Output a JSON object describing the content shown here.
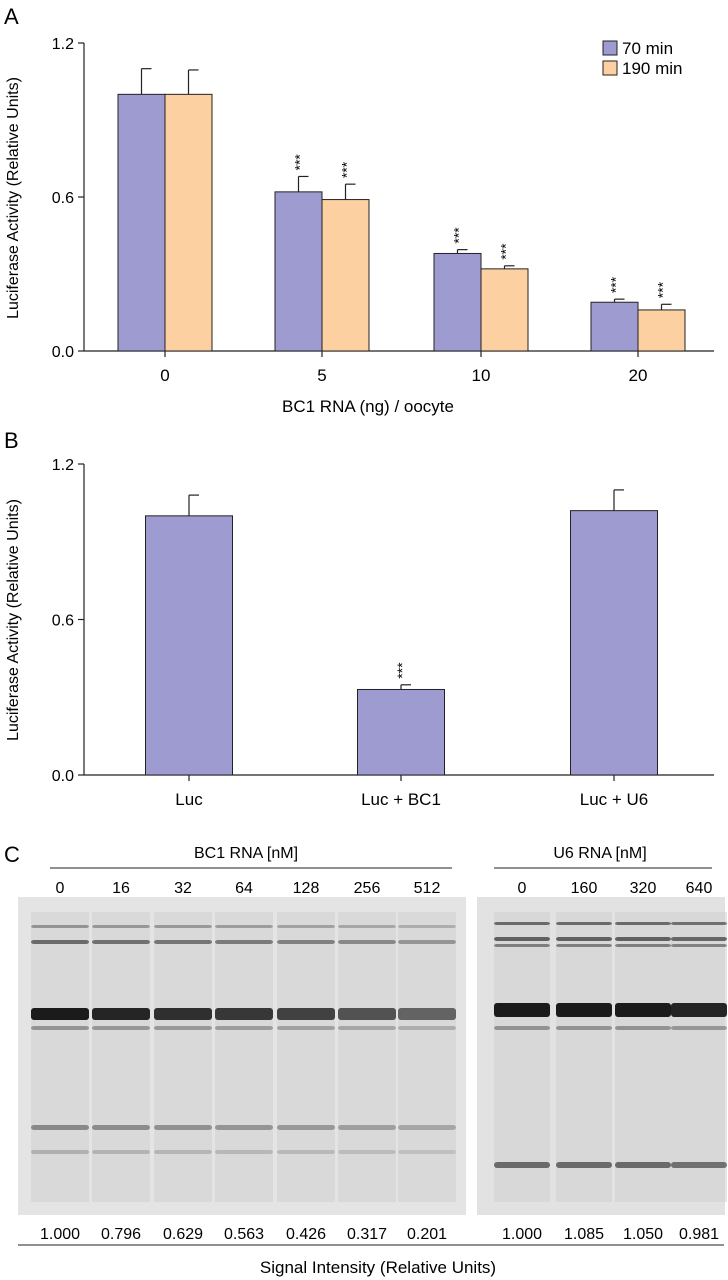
{
  "panel_labels": {
    "a": "A",
    "b": "B",
    "c": "C"
  },
  "colors": {
    "series_70": "#9e9bd0",
    "series_190": "#fcd0a0",
    "single": "#9e9bd0",
    "axis": "#222222"
  },
  "chart_data": [
    {
      "type": "bar",
      "panel": "A",
      "categories": [
        "0",
        "5",
        "10",
        "20"
      ],
      "xlabel": "BC1 RNA (ng) / oocyte",
      "ylabel": "Luciferase Activity (Relative Units)",
      "ylim": [
        0,
        1.2
      ],
      "yticks": [
        "0.0",
        "0.6",
        "1.2"
      ],
      "legend_position": "top-right",
      "series": [
        {
          "name": "70 min",
          "values": [
            1.0,
            0.62,
            0.38,
            0.19
          ],
          "errors": [
            0.1,
            0.06,
            0.015,
            0.012
          ],
          "significance": [
            "",
            "***",
            "***",
            "***"
          ]
        },
        {
          "name": "190 min",
          "values": [
            1.0,
            0.59,
            0.32,
            0.16
          ],
          "errors": [
            0.095,
            0.06,
            0.012,
            0.022
          ],
          "significance": [
            "",
            "***",
            "***",
            "***"
          ]
        }
      ]
    },
    {
      "type": "bar",
      "panel": "B",
      "categories": [
        "Luc",
        "Luc + BC1",
        "Luc + U6"
      ],
      "xlabel": "",
      "ylabel": "Luciferase Activity (Relative Units)",
      "ylim": [
        0,
        1.2
      ],
      "yticks": [
        "0.0",
        "0.6",
        "1.2"
      ],
      "series": [
        {
          "values": [
            1.0,
            0.33,
            1.02
          ],
          "errors": [
            0.08,
            0.018,
            0.08
          ],
          "significance": [
            "",
            "***",
            ""
          ]
        }
      ]
    }
  ],
  "gel": {
    "bc1": {
      "header": "BC1 RNA [nM]",
      "lanes": [
        "0",
        "16",
        "32",
        "64",
        "128",
        "256",
        "512"
      ],
      "intensities": [
        "1.000",
        "0.796",
        "0.629",
        "0.563",
        "0.426",
        "0.317",
        "0.201"
      ],
      "band_strength": [
        1.0,
        0.95,
        0.9,
        0.85,
        0.8,
        0.72,
        0.62
      ]
    },
    "u6": {
      "header": "U6 RNA [nM]",
      "lanes": [
        "0",
        "160",
        "320",
        "640"
      ],
      "intensities": [
        "1.000",
        "1.085",
        "1.050",
        "0.981"
      ],
      "band_strength": [
        1.0,
        1.0,
        1.0,
        0.95
      ]
    },
    "footer": "Signal Intensity (Relative Units)"
  }
}
